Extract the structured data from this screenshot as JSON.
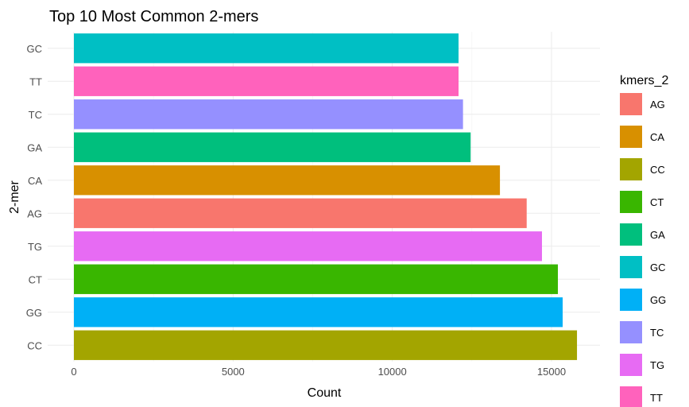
{
  "chart_data": {
    "type": "bar",
    "orientation": "horizontal",
    "title": "Top 10 Most Common 2-mers",
    "xlabel": "Count",
    "ylabel": "2-mer",
    "categories": [
      "CC",
      "GG",
      "CT",
      "TG",
      "AG",
      "CA",
      "GA",
      "TC",
      "TT",
      "GC"
    ],
    "values": [
      15800,
      15350,
      15200,
      14700,
      14220,
      13380,
      12460,
      12220,
      12080,
      12080
    ],
    "xlim": [
      0,
      16500
    ],
    "x_ticks": [
      0,
      5000,
      10000,
      15000
    ],
    "x_tick_labels": [
      "0",
      "5000",
      "10000",
      "15000"
    ],
    "grid": true,
    "legend": {
      "title": "kmers_2",
      "placement": "right",
      "entries": [
        "AG",
        "CA",
        "CC",
        "CT",
        "GA",
        "GC",
        "GG",
        "TC",
        "TG",
        "TT"
      ]
    },
    "colors": {
      "AG": "#F8766D",
      "CA": "#D89000",
      "CC": "#A3A500",
      "CT": "#39B600",
      "GA": "#00BF7D",
      "GC": "#00BFC4",
      "GG": "#00B0F6",
      "TC": "#9590FF",
      "TG": "#E76BF3",
      "TT": "#FF62BC"
    }
  }
}
